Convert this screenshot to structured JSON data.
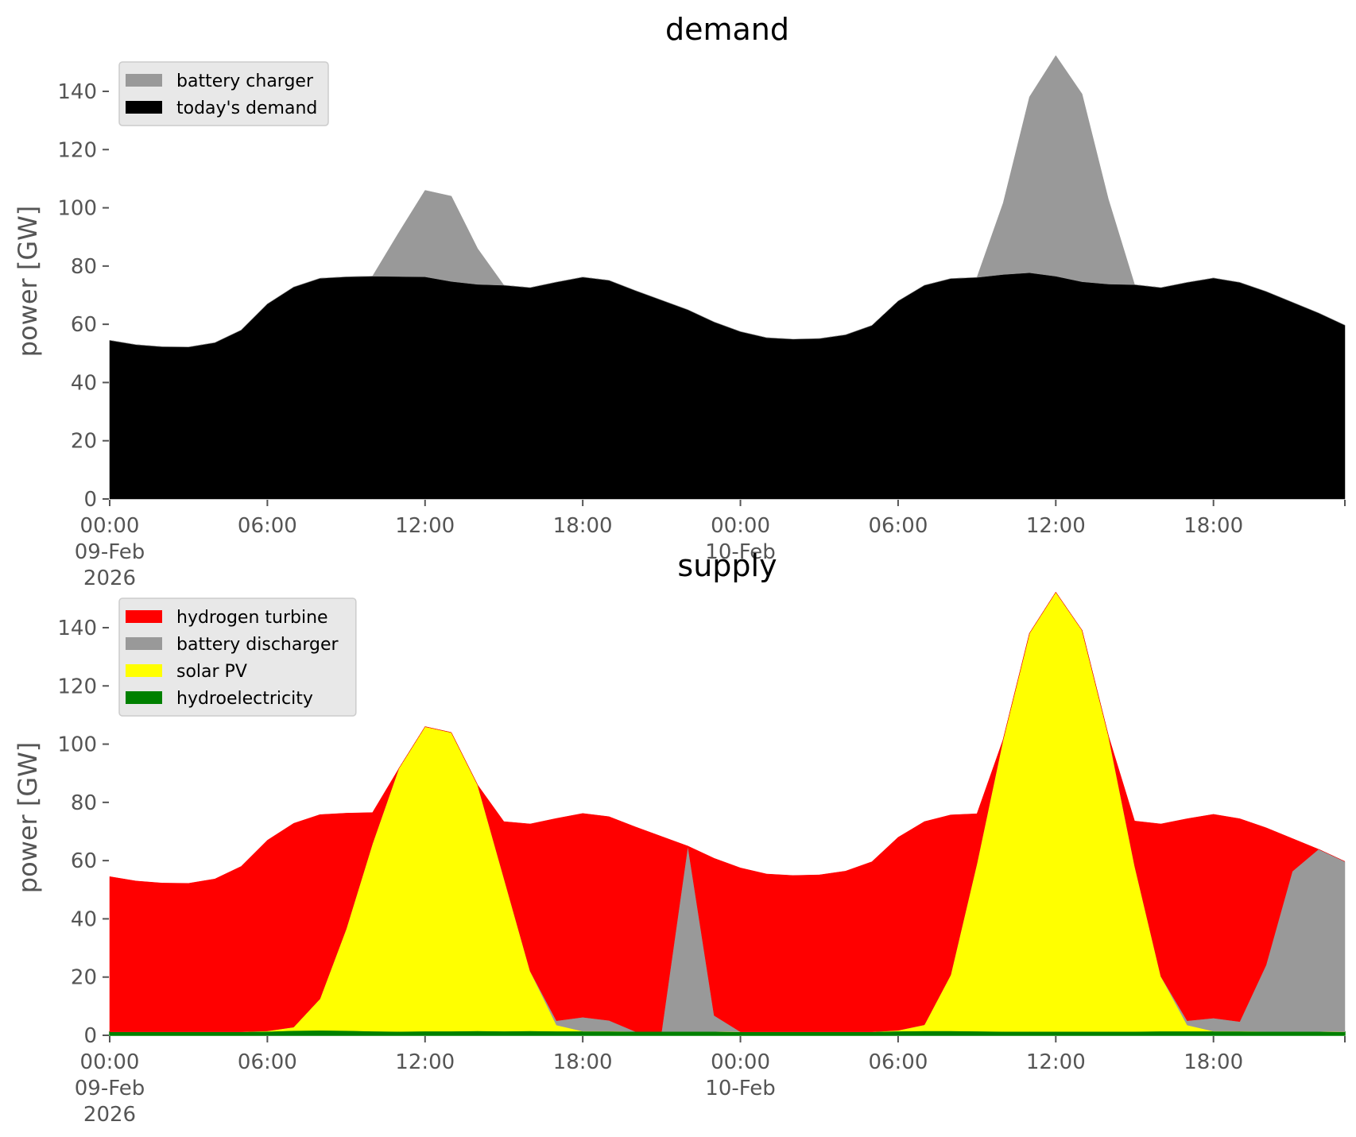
{
  "chart_data": [
    {
      "type": "area",
      "stacked": true,
      "title": "demand",
      "xlabel": "",
      "ylabel": "power [GW]",
      "ylim": [
        0,
        155
      ],
      "yticks": [
        0,
        20,
        40,
        60,
        80,
        100,
        120,
        140
      ],
      "x_unit": "hour",
      "x": [
        0,
        1,
        2,
        3,
        4,
        5,
        6,
        7,
        8,
        9,
        10,
        11,
        12,
        13,
        14,
        15,
        16,
        17,
        18,
        19,
        20,
        21,
        22,
        23,
        24,
        25,
        26,
        27,
        28,
        29,
        30,
        31,
        32,
        33,
        34,
        35,
        36,
        37,
        38,
        39,
        40,
        41,
        42,
        43,
        44,
        45,
        46,
        47
      ],
      "xlim": [
        0,
        47
      ],
      "xticks": [
        {
          "hour": 0,
          "lines": [
            "00:00",
            "09-Feb",
            "2026"
          ]
        },
        {
          "hour": 6,
          "lines": [
            "06:00"
          ]
        },
        {
          "hour": 12,
          "lines": [
            "12:00"
          ]
        },
        {
          "hour": 18,
          "lines": [
            "18:00"
          ]
        },
        {
          "hour": 24,
          "lines": [
            "00:00",
            "10-Feb"
          ]
        },
        {
          "hour": 30,
          "lines": [
            "06:00"
          ]
        },
        {
          "hour": 36,
          "lines": [
            "12:00"
          ]
        },
        {
          "hour": 42,
          "lines": [
            "18:00"
          ]
        },
        {
          "hour": 47,
          "lines": [
            ""
          ]
        }
      ],
      "legend_position": "top-left",
      "legend_order": [
        "battery charger",
        "today's demand"
      ],
      "series": [
        {
          "name": "today's demand",
          "color": "#000000",
          "values": [
            54.5,
            53,
            52.3,
            52.2,
            53.7,
            58,
            67,
            72.8,
            75.8,
            76.3,
            76.5,
            76.4,
            76.3,
            74.7,
            73.7,
            73.4,
            72.6,
            74.5,
            76.2,
            75.1,
            71.6,
            68.3,
            65,
            60.8,
            57.5,
            55.4,
            54.9,
            55.1,
            56.4,
            59.6,
            68,
            73.4,
            75.7,
            76.1,
            77.1,
            77.7,
            76.5,
            74.6,
            73.8,
            73.6,
            72.6,
            74.4,
            75.9,
            74.4,
            71.3,
            67.6,
            63.9,
            59.7
          ]
        },
        {
          "name": "battery charger",
          "color": "#999999",
          "values": [
            0,
            0,
            0,
            0,
            0,
            0,
            0,
            0,
            0,
            0,
            0,
            15.1,
            29.7,
            29.3,
            12.3,
            0,
            0,
            0,
            0,
            0,
            0,
            0,
            0,
            0,
            0,
            0,
            0,
            0,
            0,
            0,
            0,
            0,
            0,
            0,
            24.6,
            60.4,
            75.8,
            64.5,
            29.2,
            0,
            0,
            0,
            0,
            0,
            0,
            0,
            0,
            0
          ]
        }
      ]
    },
    {
      "type": "area",
      "stacked": true,
      "title": "supply",
      "xlabel": "",
      "ylabel": "power [GW]",
      "ylim": [
        0,
        155
      ],
      "yticks": [
        0,
        20,
        40,
        60,
        80,
        100,
        120,
        140
      ],
      "x_unit": "hour",
      "x": [
        0,
        1,
        2,
        3,
        4,
        5,
        6,
        7,
        8,
        9,
        10,
        11,
        12,
        13,
        14,
        15,
        16,
        17,
        18,
        19,
        20,
        21,
        22,
        23,
        24,
        25,
        26,
        27,
        28,
        29,
        30,
        31,
        32,
        33,
        34,
        35,
        36,
        37,
        38,
        39,
        40,
        41,
        42,
        43,
        44,
        45,
        46,
        47
      ],
      "xlim": [
        0,
        47
      ],
      "xticks": [
        {
          "hour": 0,
          "lines": [
            "00:00",
            "09-Feb",
            "2026"
          ]
        },
        {
          "hour": 6,
          "lines": [
            "06:00"
          ]
        },
        {
          "hour": 12,
          "lines": [
            "12:00"
          ]
        },
        {
          "hour": 18,
          "lines": [
            "18:00"
          ]
        },
        {
          "hour": 24,
          "lines": [
            "00:00",
            "10-Feb"
          ]
        },
        {
          "hour": 30,
          "lines": [
            "06:00"
          ]
        },
        {
          "hour": 36,
          "lines": [
            "12:00"
          ]
        },
        {
          "hour": 42,
          "lines": [
            "18:00"
          ]
        },
        {
          "hour": 47,
          "lines": [
            ""
          ]
        }
      ],
      "legend_position": "top-left",
      "legend_order": [
        "hydrogen turbine",
        "battery discharger",
        "solar PV",
        "hydroelectricity"
      ],
      "series": [
        {
          "name": "hydroelectricity",
          "color": "#008000",
          "values": [
            1.2,
            1.2,
            1.2,
            1.2,
            1.2,
            1.2,
            1.3,
            1.6,
            1.7,
            1.6,
            1.4,
            1.3,
            1.4,
            1.4,
            1.5,
            1.4,
            1.5,
            1.4,
            1.4,
            1.4,
            1.3,
            1.3,
            1.3,
            1.3,
            1.2,
            1.2,
            1.2,
            1.2,
            1.2,
            1.2,
            1.4,
            1.5,
            1.5,
            1.4,
            1.3,
            1.3,
            1.3,
            1.3,
            1.3,
            1.3,
            1.4,
            1.4,
            1.4,
            1.4,
            1.3,
            1.3,
            1.3,
            1.2
          ]
        },
        {
          "name": "solar PV",
          "color": "#ffff00",
          "values": [
            0,
            0,
            0,
            0,
            0,
            0,
            0.2,
            1.2,
            10.8,
            34.9,
            64.4,
            90.3,
            104.6,
            102.6,
            84.5,
            52.6,
            20.5,
            2.1,
            0,
            0,
            0,
            0,
            0,
            0,
            0,
            0,
            0,
            0,
            0,
            0,
            0.3,
            2.1,
            19.2,
            57.6,
            100.4,
            136.8,
            150.9,
            137.8,
            101.7,
            56.9,
            18.8,
            2.1,
            0,
            0,
            0,
            0,
            0,
            0
          ]
        },
        {
          "name": "battery discharger",
          "color": "#999999",
          "values": [
            0,
            0,
            0,
            0,
            0,
            0,
            0,
            0,
            0,
            0,
            0,
            0,
            0,
            0,
            0,
            0,
            0,
            1.5,
            4.8,
            3.7,
            0,
            0,
            63.7,
            5.5,
            0,
            0,
            0,
            0,
            0,
            0,
            0,
            0,
            0,
            0,
            0,
            0,
            0,
            0,
            0,
            0,
            0,
            1.5,
            4.5,
            3.3,
            22.8,
            55,
            62.6,
            58.5
          ]
        },
        {
          "name": "hydrogen turbine",
          "color": "#ff0000",
          "values": [
            53.3,
            51.8,
            51.1,
            51,
            52.5,
            56.8,
            65.5,
            70,
            63.3,
            39.8,
            10.7,
            0,
            0,
            0,
            0,
            19.4,
            50.6,
            69.5,
            70,
            70,
            70.3,
            67,
            0,
            54,
            56.3,
            54.2,
            53.7,
            53.9,
            55.2,
            58.4,
            66.3,
            69.8,
            55,
            17.1,
            0,
            0,
            0,
            0,
            0,
            15.4,
            52.4,
            69.4,
            70,
            69.7,
            47.2,
            11.3,
            0,
            0
          ]
        }
      ]
    }
  ]
}
